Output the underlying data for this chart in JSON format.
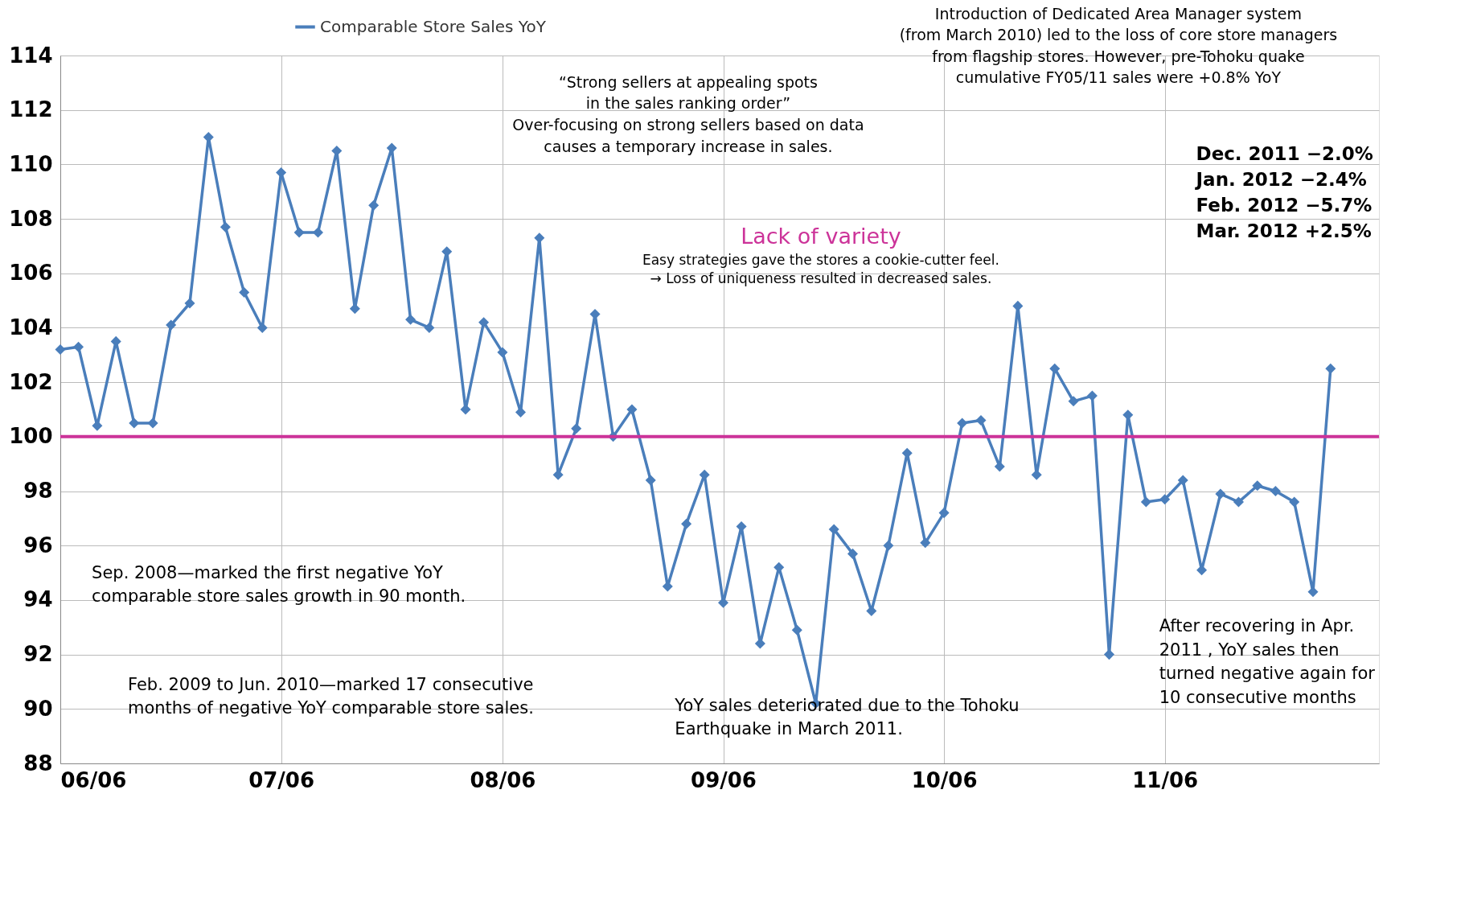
{
  "chart_data": {
    "type": "line",
    "x": [
      "2006-06",
      "2006-07",
      "2006-08",
      "2006-09",
      "2006-10",
      "2006-11",
      "2006-12",
      "2007-01",
      "2007-02",
      "2007-03",
      "2007-04",
      "2007-05",
      "2007-06",
      "2007-07",
      "2007-08",
      "2007-09",
      "2007-10",
      "2007-11",
      "2007-12",
      "2008-01",
      "2008-02",
      "2008-03",
      "2008-04",
      "2008-05",
      "2008-06",
      "2008-07",
      "2008-08",
      "2008-09",
      "2008-10",
      "2008-11",
      "2008-12",
      "2009-01",
      "2009-02",
      "2009-03",
      "2009-04",
      "2009-05",
      "2009-06",
      "2009-07",
      "2009-08",
      "2009-09",
      "2009-10",
      "2009-11",
      "2009-12",
      "2010-01",
      "2010-02",
      "2010-03",
      "2010-04",
      "2010-05",
      "2010-06",
      "2010-07",
      "2010-08",
      "2010-09",
      "2010-10",
      "2010-11",
      "2010-12",
      "2011-01",
      "2011-02",
      "2011-03",
      "2011-04",
      "2011-05",
      "2011-06",
      "2011-07",
      "2011-08",
      "2011-09",
      "2011-10",
      "2011-11",
      "2011-12",
      "2012-01",
      "2012-02",
      "2012-03"
    ],
    "series": [
      {
        "name": "Comparable Store Sales YoY",
        "color": "#4a7ebb",
        "values": [
          103.2,
          103.3,
          100.4,
          103.5,
          100.5,
          100.5,
          104.1,
          104.9,
          111.0,
          107.7,
          105.3,
          104.0,
          109.7,
          107.5,
          107.5,
          110.5,
          104.7,
          108.5,
          110.6,
          104.3,
          104.0,
          106.8,
          101.0,
          104.2,
          103.1,
          100.9,
          107.3,
          98.6,
          100.3,
          104.5,
          100.0,
          101.0,
          98.4,
          94.5,
          96.8,
          98.6,
          93.9,
          96.7,
          92.4,
          95.2,
          92.9,
          90.2,
          96.6,
          95.7,
          93.6,
          96.0,
          99.4,
          96.1,
          97.2,
          100.5,
          100.6,
          98.9,
          104.8,
          98.6,
          102.5,
          101.3,
          101.5,
          92.0,
          100.8,
          97.6,
          97.7,
          98.4,
          95.1,
          97.9,
          97.6,
          98.2,
          98.0,
          97.6,
          94.3,
          102.5
        ]
      }
    ],
    "xlim": [
      "2006-06",
      "2012-05-20"
    ],
    "xticks": [
      {
        "value": "2006-06",
        "label": "06/06"
      },
      {
        "value": "2007-06",
        "label": "07/06"
      },
      {
        "value": "2008-06",
        "label": "08/06"
      },
      {
        "value": "2009-06",
        "label": "09/06"
      },
      {
        "value": "2010-06",
        "label": "10/06"
      },
      {
        "value": "2011-06",
        "label": "11/06"
      }
    ],
    "ylim": [
      88,
      114
    ],
    "yticks": [
      88,
      90,
      92,
      94,
      96,
      98,
      100,
      102,
      104,
      106,
      108,
      110,
      112,
      114
    ],
    "grid": true,
    "legend": "top",
    "marker": "diamond",
    "line_style": "solid",
    "ref_lines": [
      {
        "axis": "y",
        "value": 100,
        "color": "#cc3399"
      }
    ],
    "annotations": [
      "Sep. 2008—marked the first negative YoY\ncomparable store sales growth in 90 month.",
      "Feb. 2009 to Jun. 2010—marked 17 consecutive\nmonths of negative YoY comparable store sales.",
      "YoY sales deteriorated due to the Tohoku\nEarthquake in March 2011.",
      "After recovering in Apr.\n2011 , YoY sales then\nturned negative again for\n10 consecutive months",
      "“Strong sellers at appealing spots\nin the sales ranking order”\nOver-focusing on strong sellers based on data\ncauses a temporary increase in sales.",
      "Lack of variety",
      "Easy strategies gave the stores a cookie-cutter feel.\n→ Loss of uniqueness resulted in decreased sales.",
      "Introduction of Dedicated Area Manager system\n(from March 2010) led to the loss of core store managers\nfrom flagship stores. However, pre-Tohoku quake\ncumulative FY05/11 sales were +0.8% YoY",
      "Dec. 2011    −2.0%\nJan. 2012    −2.4%\nFeb. 2012    −5.7%\nMar. 2012   +2.5%"
    ]
  }
}
